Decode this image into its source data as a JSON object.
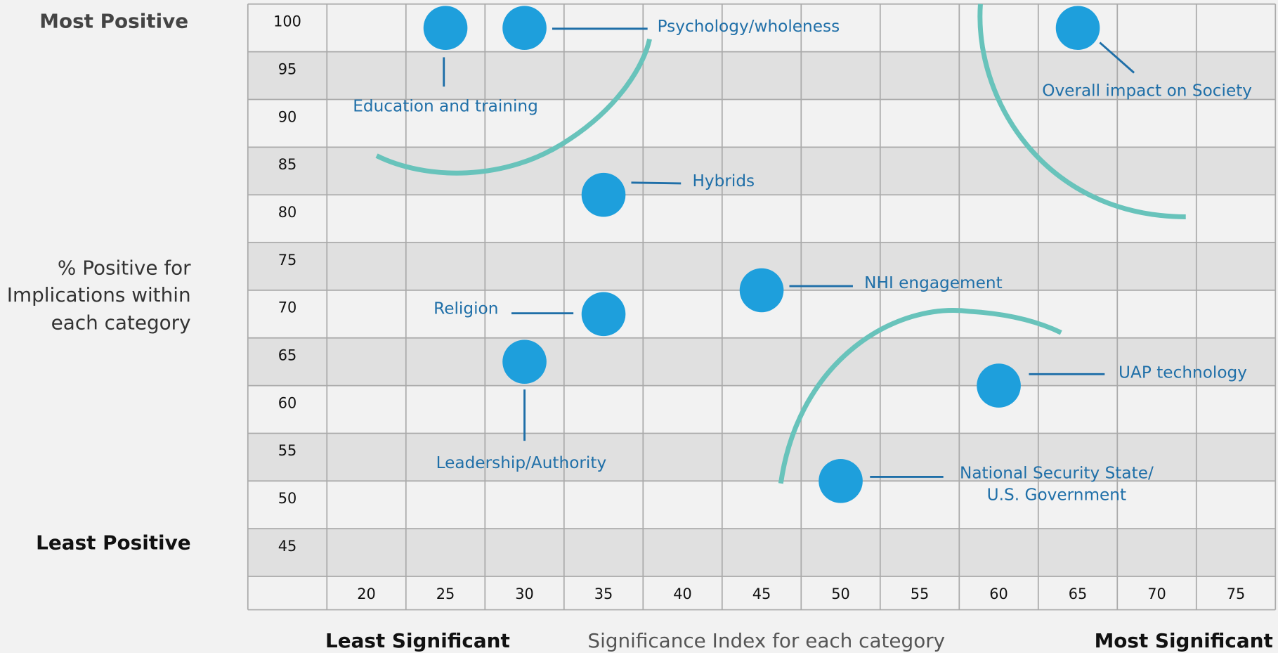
{
  "chart_data": {
    "type": "scatter",
    "y_label_top": "Most Positive",
    "ylabel": [
      "% Positive for",
      "Implications within",
      "each category"
    ],
    "y_label_bottom": "Least Positive",
    "x_label_left": "Least Significant",
    "xlabel": "Significance Index for each category",
    "x_label_right": "Most Significant",
    "point_labels": [
      [
        "Education and training"
      ],
      [
        "Psychology/wholeness"
      ],
      [
        "Overall impact on Society"
      ],
      [
        "Hybrids"
      ],
      [
        "NHI engagement"
      ],
      [
        "Religion"
      ],
      [
        "Leadership/Authority"
      ],
      [
        "UAP technology"
      ],
      [
        "National Security State/",
        "U.S. Government"
      ]
    ],
    "x": [
      25,
      30,
      65,
      35,
      45,
      35,
      30,
      60,
      50
    ],
    "values": [
      100,
      100,
      100,
      82.5,
      72.5,
      70,
      65,
      62.5,
      52.5
    ],
    "color": "#1e9fdc",
    "label_color": "#1f6fa8",
    "xlim": [
      12.5,
      77.5
    ],
    "ylim": [
      42.5,
      102.5
    ],
    "xticks": [
      20,
      25,
      30,
      35,
      40,
      45,
      50,
      55,
      60,
      65,
      70,
      75
    ],
    "yticks": [
      45,
      50,
      55,
      60,
      65,
      70,
      75,
      80,
      85,
      90,
      95,
      100
    ],
    "grid": true
  }
}
